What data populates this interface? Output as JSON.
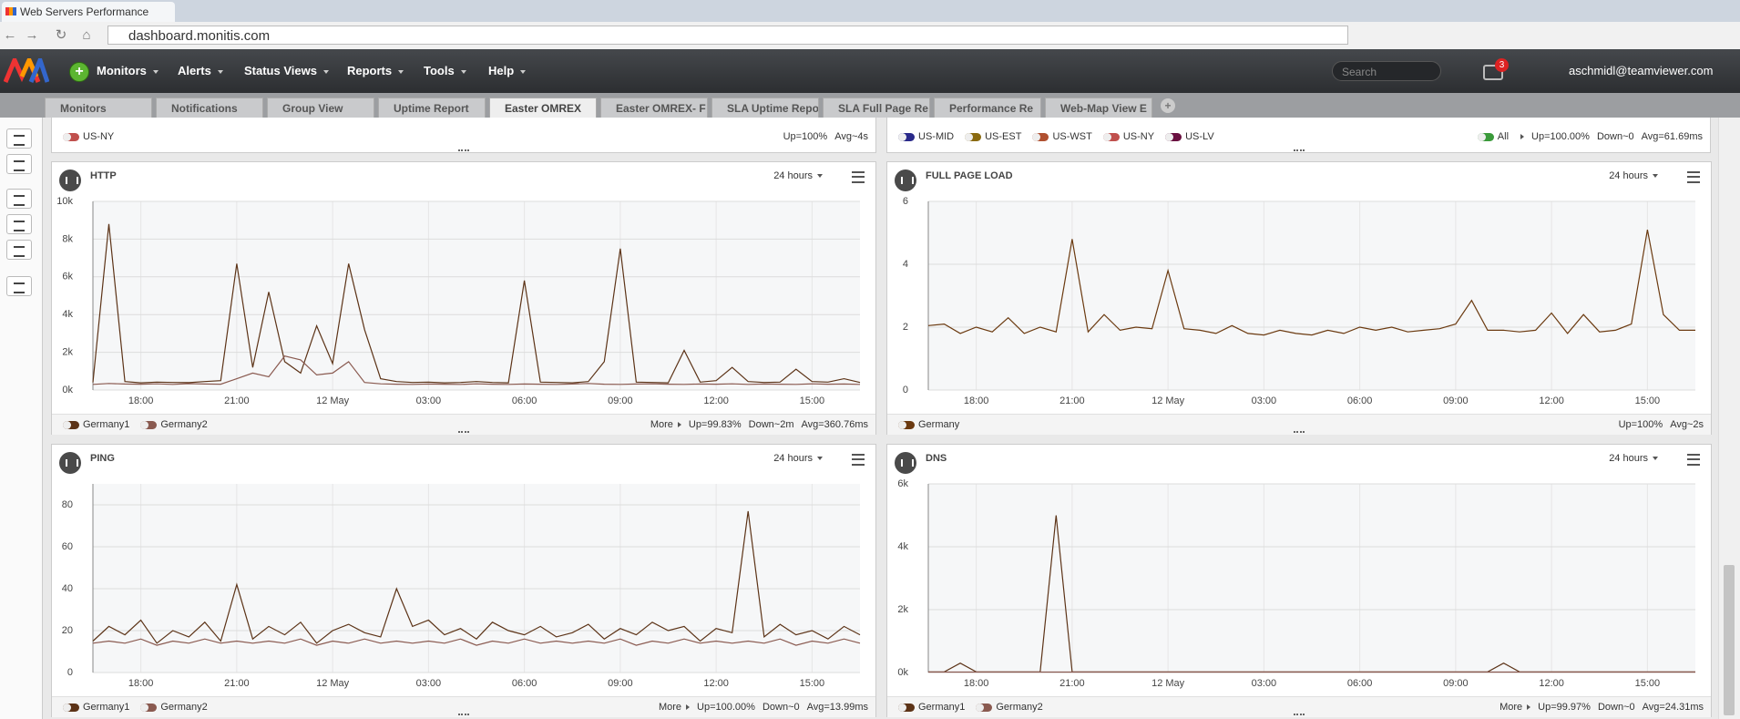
{
  "browser": {
    "tab_title": "Web Servers Performance",
    "url": "dashboard.monitis.com"
  },
  "navbar": {
    "menu": [
      "Monitors",
      "Alerts",
      "Status Views",
      "Reports",
      "Tools",
      "Help"
    ],
    "search_placeholder": "Search",
    "notification_count": "3",
    "user": "aschmidl@teamviewer.com"
  },
  "tabs": [
    "Monitors",
    "Notifications",
    "Group View",
    "Uptime Report",
    "Easter OMREX",
    "Easter OMREX- F",
    "SLA Uptime Repo",
    "SLA Full Page Re",
    "Performance Re",
    "Web-Map View E"
  ],
  "active_tab": 4,
  "top_row": [
    {
      "legend": [
        {
          "name": "US-NY",
          "color": "#c0504d"
        }
      ],
      "stats": [
        "Up=100%",
        "Avg~4s"
      ]
    },
    {
      "legend": [
        {
          "name": "US-MID",
          "color": "#2a2a8a"
        },
        {
          "name": "US-EST",
          "color": "#8a6a10"
        },
        {
          "name": "US-WST",
          "color": "#b05030"
        },
        {
          "name": "US-NY",
          "color": "#c0504d"
        },
        {
          "name": "US-LV",
          "color": "#6a1040"
        }
      ],
      "toggle": {
        "name": "All",
        "color": "#3a9a3a"
      },
      "stats": [
        "Up=100.00%",
        "Down~0",
        "Avg=61.69ms"
      ]
    }
  ],
  "time_axis": {
    "x": [
      16.5,
      17,
      17.5,
      18,
      18.5,
      19,
      19.5,
      20,
      20.5,
      21,
      21.5,
      22,
      22.5,
      23,
      23.5,
      24,
      24.5,
      25,
      25.5,
      26,
      26.5,
      27,
      27.5,
      28,
      28.5,
      29,
      29.5,
      30,
      30.5,
      31,
      31.5,
      32,
      32.5,
      33,
      33.5,
      34,
      34.5,
      35,
      35.5,
      36,
      36.5,
      37,
      37.5,
      38,
      38.5,
      39,
      39.5,
      40,
      40.5
    ],
    "xlim": [
      16.5,
      40.5
    ],
    "xticks": [
      {
        "value": 18,
        "label": "18:00"
      },
      {
        "value": 21,
        "label": "21:00"
      },
      {
        "value": 24,
        "label": "12 May"
      },
      {
        "value": 27,
        "label": "03:00"
      },
      {
        "value": 30,
        "label": "06:00"
      },
      {
        "value": 33,
        "label": "09:00"
      },
      {
        "value": 36,
        "label": "12:00"
      },
      {
        "value": 39,
        "label": "15:00"
      }
    ]
  },
  "panels": [
    {
      "title": "HTTP",
      "period": "24 hours",
      "more": "More",
      "stats": [
        "Up=99.83%",
        "Down~2m",
        "Avg=360.76ms"
      ],
      "chart": {
        "type": "line",
        "ylim": [
          0,
          10000
        ],
        "grid": true,
        "yticks": [
          {
            "value": 0,
            "label": "0k"
          },
          {
            "value": 2000,
            "label": "2k"
          },
          {
            "value": 4000,
            "label": "4k"
          },
          {
            "value": 6000,
            "label": "6k"
          },
          {
            "value": 8000,
            "label": "8k"
          },
          {
            "value": 10000,
            "label": "10k"
          }
        ],
        "series": [
          {
            "name": "Germany1",
            "color": "#5c3317",
            "values": [
              400,
              8800,
              450,
              380,
              420,
              400,
              390,
              450,
              500,
              6700,
              1200,
              5200,
              1500,
              900,
              3400,
              1400,
              6700,
              3200,
              600,
              450,
              400,
              420,
              380,
              400,
              450,
              400,
              380,
              5800,
              420,
              400,
              380,
              450,
              1500,
              7500,
              420,
              400,
              380,
              2100,
              420,
              500,
              1200,
              450,
              400,
              420,
              1100,
              450,
              420,
              600,
              400
            ]
          },
          {
            "name": "Germany2",
            "color": "#8a5a50",
            "values": [
              300,
              350,
              320,
              310,
              330,
              300,
              340,
              320,
              310,
              600,
              900,
              700,
              1800,
              1600,
              800,
              900,
              1500,
              400,
              330,
              310,
              300,
              320,
              310,
              300,
              330,
              310,
              300,
              320,
              310,
              300,
              320,
              350,
              310,
              300,
              320,
              330,
              310,
              300,
              320,
              310,
              330,
              300,
              320,
              310,
              300,
              330,
              310,
              320,
              300
            ]
          }
        ]
      }
    },
    {
      "title": "FULL PAGE LOAD",
      "period": "24 hours",
      "stats": [
        "Up=100%",
        "Avg~2s"
      ],
      "chart": {
        "type": "line",
        "ylim": [
          0,
          6
        ],
        "grid": true,
        "yticks": [
          0,
          2,
          4,
          6
        ],
        "series": [
          {
            "name": "Germany",
            "color": "#6b3a10",
            "values": [
              2.05,
              2.1,
              1.8,
              2.0,
              1.85,
              2.3,
              1.8,
              2.0,
              1.85,
              4.8,
              1.85,
              2.4,
              1.9,
              2.0,
              1.95,
              3.8,
              1.95,
              1.9,
              1.8,
              2.05,
              1.8,
              1.75,
              1.9,
              1.8,
              1.75,
              1.9,
              1.8,
              2.0,
              1.9,
              2.0,
              1.85,
              1.9,
              1.95,
              2.1,
              2.85,
              1.9,
              1.9,
              1.85,
              1.9,
              2.45,
              1.8,
              2.4,
              1.85,
              1.9,
              2.1,
              5.1,
              2.4,
              1.9,
              1.9
            ]
          }
        ]
      }
    },
    {
      "title": "PING",
      "period": "24 hours",
      "more": "More",
      "stats": [
        "Up=100.00%",
        "Down~0",
        "Avg=13.99ms"
      ],
      "chart": {
        "type": "line",
        "ylim": [
          0,
          90
        ],
        "grid": true,
        "yticks": [
          0,
          20,
          40,
          60,
          80
        ],
        "series": [
          {
            "name": "Germany1",
            "color": "#5c3317",
            "values": [
              15,
              22,
              18,
              25,
              14,
              20,
              17,
              24,
              15,
              42,
              16,
              22,
              18,
              24,
              14,
              20,
              23,
              19,
              17,
              40,
              22,
              25,
              18,
              21,
              16,
              24,
              20,
              18,
              22,
              17,
              19,
              23,
              16,
              21,
              18,
              24,
              20,
              22,
              15,
              21,
              19,
              77,
              17,
              23,
              18,
              20,
              16,
              22,
              18
            ]
          },
          {
            "name": "Germany2",
            "color": "#8a5a50",
            "values": [
              14,
              15,
              14,
              16,
              13,
              15,
              14,
              16,
              14,
              15,
              14,
              15,
              14,
              16,
              13,
              15,
              14,
              16,
              14,
              15,
              14,
              15,
              14,
              16,
              13,
              15,
              14,
              16,
              14,
              15,
              14,
              15,
              14,
              16,
              13,
              15,
              14,
              16,
              14,
              15,
              14,
              15,
              14,
              16,
              13,
              15,
              14,
              16,
              14
            ]
          }
        ]
      }
    },
    {
      "title": "DNS",
      "period": "24 hours",
      "more": "More",
      "stats": [
        "Up=99.97%",
        "Down~0",
        "Avg=24.31ms"
      ],
      "chart": {
        "type": "line",
        "ylim": [
          0,
          6000
        ],
        "grid": true,
        "yticks": [
          {
            "value": 0,
            "label": "0k"
          },
          {
            "value": 2000,
            "label": "2k"
          },
          {
            "value": 4000,
            "label": "4k"
          },
          {
            "value": 6000,
            "label": "6k"
          }
        ],
        "series": [
          {
            "name": "Germany1",
            "color": "#5c3317",
            "values": [
              20,
              20,
              300,
              20,
              20,
              20,
              20,
              20,
              5000,
              20,
              20,
              20,
              20,
              20,
              20,
              20,
              20,
              20,
              20,
              20,
              20,
              20,
              20,
              20,
              20,
              20,
              20,
              20,
              20,
              20,
              20,
              20,
              20,
              20,
              20,
              20,
              300,
              20,
              20,
              20,
              20,
              20,
              20,
              20,
              20,
              20,
              20,
              20,
              20
            ]
          },
          {
            "name": "Germany2",
            "color": "#8a5a50",
            "values": [
              15,
              15,
              15,
              15,
              15,
              15,
              15,
              15,
              15,
              15,
              15,
              15,
              15,
              15,
              15,
              15,
              15,
              15,
              15,
              15,
              15,
              15,
              15,
              15,
              15,
              15,
              15,
              15,
              15,
              15,
              15,
              15,
              15,
              15,
              15,
              15,
              15,
              15,
              15,
              15,
              15,
              15,
              15,
              15,
              15,
              15,
              15,
              15,
              15
            ]
          }
        ]
      }
    }
  ]
}
